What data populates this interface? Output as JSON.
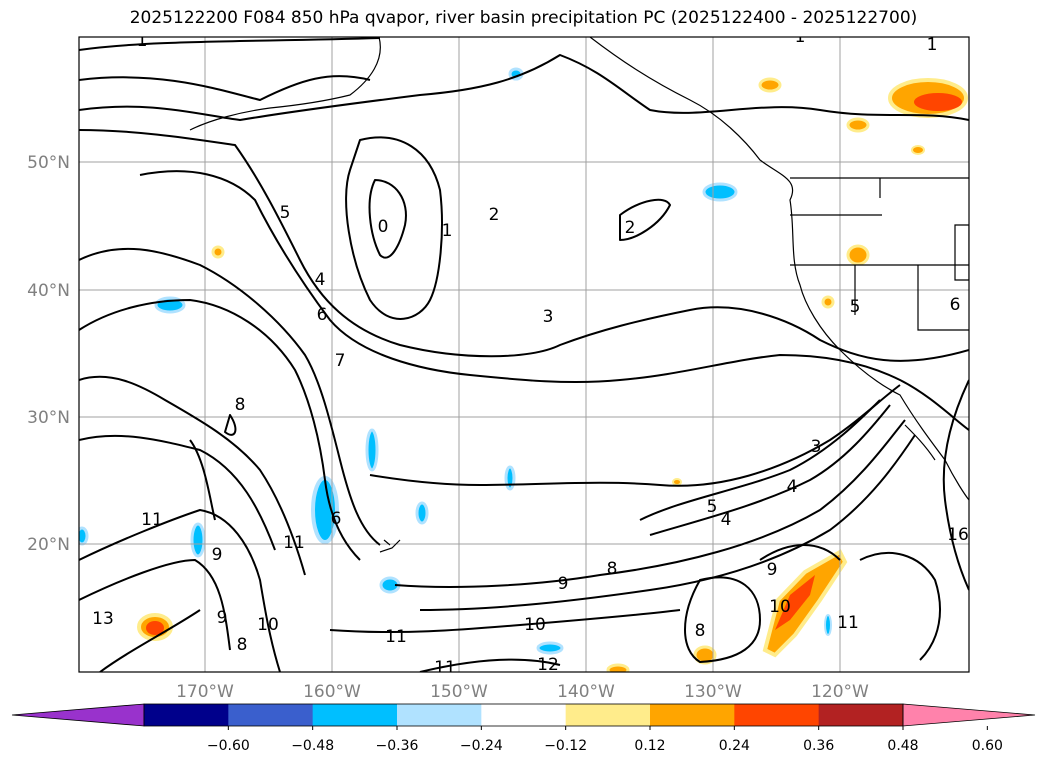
{
  "title": "2025122200 F084 850 hPa qvapor, river basin precipitation PC (2025122400 - 2025122700)",
  "map": {
    "lat_labels": [
      "50°N",
      "40°N",
      "30°N",
      "20°N"
    ],
    "lon_labels": [
      "170°W",
      "160°W",
      "150°W",
      "140°W",
      "130°W",
      "120°W"
    ],
    "contour_labels": [
      "1",
      "1",
      "1",
      "0",
      "1",
      "2",
      "2",
      "3",
      "5",
      "4",
      "6",
      "7",
      "8",
      "11",
      "9",
      "11",
      "6",
      "9",
      "8",
      "13",
      "10",
      "11",
      "11",
      "10",
      "12",
      "5",
      "4",
      "3",
      "4",
      "8",
      "9",
      "10",
      "11",
      "9",
      "8",
      "16",
      "5",
      "6"
    ]
  },
  "colorbar": {
    "colors": [
      "#9932cc",
      "#00008b",
      "#3a5fcd",
      "#00bfff",
      "#b0e2ff",
      "#ffffff",
      "#ffec8b",
      "#ffa500",
      "#ff4500",
      "#b22222",
      "#ff82ab"
    ],
    "tick_labels": [
      "−0.60",
      "−0.48",
      "−0.36",
      "−0.24",
      "−0.12",
      "0.12",
      "0.24",
      "0.36",
      "0.48",
      "0.60"
    ]
  }
}
